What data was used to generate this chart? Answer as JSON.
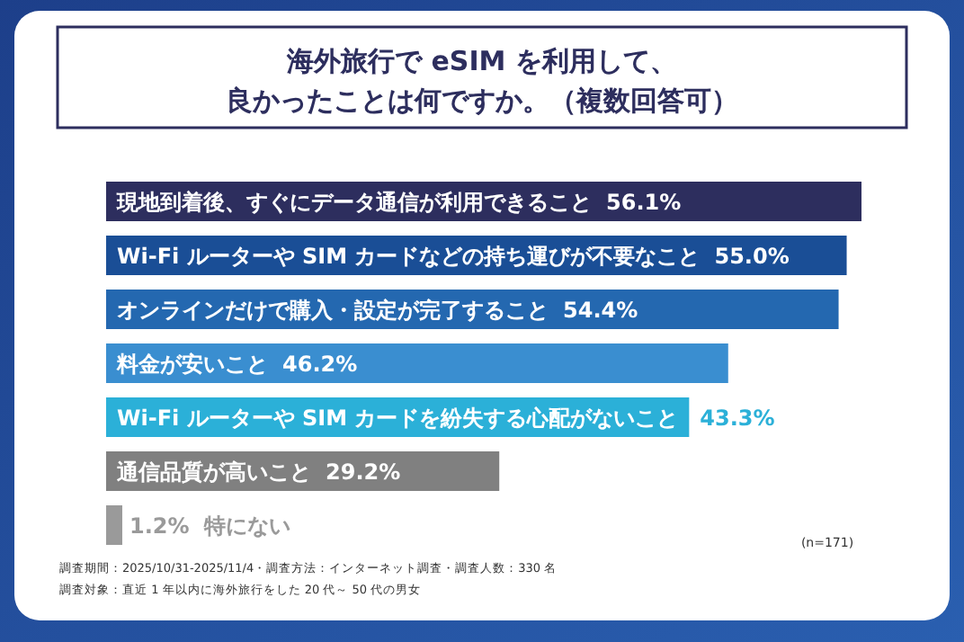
{
  "chart_data": {
    "type": "bar",
    "orientation": "horizontal",
    "title": "海外旅行で eSIM を利用して、",
    "subtitle": "良かったことは何ですか。（複数回答可）",
    "categories": [
      "現地到着後、すぐにデータ通信が利用できること",
      "Wi-Fi ルーターや SIM カードなどの持ち運びが不要なこと",
      "オンラインだけで購入・設定が完了すること",
      "料金が安いこと",
      "Wi-Fi ルーターや SIM カードを紛失する心配がないこと",
      "通信品質が高いこと",
      "特にない"
    ],
    "values": [
      56.1,
      55.0,
      54.4,
      46.2,
      43.3,
      29.2,
      1.2
    ],
    "value_labels": [
      "56.1%",
      "55.0%",
      "54.4%",
      "46.2%",
      "43.3%",
      "29.2%",
      "1.2%"
    ],
    "colors": [
      "#2d2e5e",
      "#1a4e96",
      "#2468b0",
      "#3a8ed0",
      "#2bb0d8",
      "#808080",
      "#9a9a9a"
    ],
    "annotations": [
      "(n=171)",
      "調査期間：2025/10/31-2025/11/4・調査方法：インターネット調査・調査人数：330 名",
      "調査対象：直近 1 年以内に海外旅行をした 20 代～ 50 代の男女"
    ]
  }
}
